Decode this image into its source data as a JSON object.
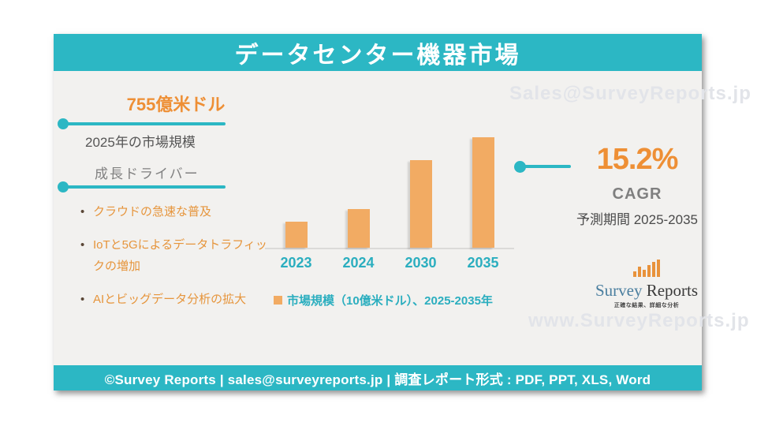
{
  "colors": {
    "accent_teal": "#2CB7C4",
    "accent_orange": "#EE8F35",
    "bar_orange": "#F2AB63",
    "label_teal": "#2BAEBF",
    "card_background": "#F2F1EF"
  },
  "header": {
    "title": "データセンター機器市場"
  },
  "watermarks": {
    "top": "Sales@SurveyReports.jp",
    "bottom": "www.SurveyReports.jp"
  },
  "left_panel": {
    "market_value": "755億米ドル",
    "market_value_caption": "2025年の市場規模",
    "drivers_heading": "成長ドライバー",
    "drivers": [
      "クラウドの急速な普及",
      "IoTと5Gによるデータトラフィックの増加",
      "AIとビッグデータ分析の拡大"
    ]
  },
  "chart_data": {
    "type": "bar",
    "categories": [
      "2023",
      "2024",
      "2030",
      "2035"
    ],
    "values": [
      75,
      110,
      250,
      315
    ],
    "values_note": "estimated from bar heights; no y-axis ticks shown",
    "ylim": [
      0,
      315
    ],
    "title": "",
    "xlabel": "",
    "ylabel": "",
    "grid": false,
    "y_axis_visible": false,
    "legend": "市場規模（10億米ドル）、2025-2035年",
    "legend_position": "bottom-left",
    "bar_color": "#F2AB63"
  },
  "cagr": {
    "value": "15.2%",
    "label": "CAGR",
    "period": "予測期間 2025-2035"
  },
  "logo": {
    "name_part1": "Survey",
    "name_part2": " Reports",
    "tagline": "正確な結果、詳細な分析",
    "icon": "bar-chart-icon"
  },
  "footer": {
    "text": "©Survey Reports | sales@surveyreports.jp | 調査レポート形式 : PDF, PPT, XLS, Word"
  }
}
